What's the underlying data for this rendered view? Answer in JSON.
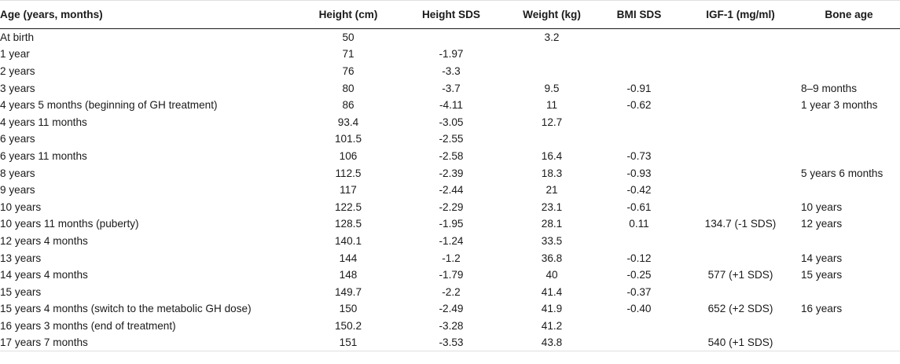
{
  "table": {
    "headers": [
      "Age (years, months)",
      "Height (cm)",
      "Height SDS",
      "Weight (kg)",
      "BMI SDS",
      "IGF-1 (mg/ml)",
      "Bone age"
    ],
    "rows": [
      [
        "At birth",
        "50",
        "",
        "3.2",
        "",
        "",
        ""
      ],
      [
        "1 year",
        "71",
        "-1.97",
        "",
        "",
        "",
        ""
      ],
      [
        "2 years",
        "76",
        "-3.3",
        "",
        "",
        "",
        ""
      ],
      [
        "3 years",
        "80",
        "-3.7",
        "9.5",
        "-0.91",
        "",
        "8–9 months"
      ],
      [
        "4 years 5 months (beginning of GH treatment)",
        "86",
        "-4.11",
        "11",
        "-0.62",
        "",
        "1 year 3 months"
      ],
      [
        "4 years 11 months",
        "93.4",
        "-3.05",
        "12.7",
        "",
        "",
        ""
      ],
      [
        "6 years",
        "101.5",
        "-2.55",
        "",
        "",
        "",
        ""
      ],
      [
        "6 years 11 months",
        "106",
        "-2.58",
        "16.4",
        "-0.73",
        "",
        ""
      ],
      [
        "8 years",
        "112.5",
        "-2.39",
        "18.3",
        "-0.93",
        "",
        "5 years 6 months"
      ],
      [
        "9 years",
        "117",
        "-2.44",
        "21",
        "-0.42",
        "",
        ""
      ],
      [
        "10 years",
        "122.5",
        "-2.29",
        "23.1",
        "-0.61",
        "",
        "10 years"
      ],
      [
        "10 years 11 months (puberty)",
        "128.5",
        "-1.95",
        "28.1",
        "0.11",
        "134.7 (-1 SDS)",
        "12 years"
      ],
      [
        "12 years 4 months",
        "140.1",
        "-1.24",
        "33.5",
        "",
        "",
        ""
      ],
      [
        "13 years",
        "144",
        "-1.2",
        "36.8",
        "-0.12",
        "",
        "14 years"
      ],
      [
        "14 years 4 months",
        "148",
        "-1.79",
        "40",
        "-0.25",
        "577 (+1 SDS)",
        "15 years"
      ],
      [
        "15 years",
        "149.7",
        "-2.2",
        "41.4",
        "-0.37",
        "",
        ""
      ],
      [
        "15 years 4 months (switch to the metabolic GH dose)",
        "150",
        "-2.49",
        "41.9",
        "-0.40",
        "652 (+2 SDS)",
        "16 years"
      ],
      [
        "16 years 3 months (end of treatment)",
        "150.2",
        "-3.28",
        "41.2",
        "",
        "",
        ""
      ],
      [
        "17 years 7 months",
        "151",
        "-3.53",
        "43.8",
        "",
        "540 (+1 SDS)",
        ""
      ]
    ]
  }
}
